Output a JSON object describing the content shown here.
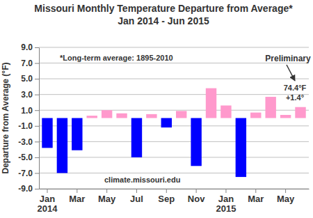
{
  "chart_data": {
    "type": "bar",
    "title": "Missouri Monthly Temperature Departure from Average*",
    "subtitle": "Jan 2014 - Jun 2015",
    "y_label": "Departure from Average (°F)",
    "annotations": [
      "*Long-term average: 1895-2010",
      "Preliminary",
      "74.4°F",
      "+1.4°",
      "climate.missouri.edu"
    ],
    "categories": [
      "Jan 2014",
      null,
      "Mar",
      null,
      "May",
      null,
      "Jul",
      null,
      "Sep",
      null,
      "Nov",
      null,
      "Jan 2015",
      null,
      "Mar",
      null,
      "May",
      null
    ],
    "values": [
      -3.8,
      -7.0,
      -4.1,
      0.3,
      1.0,
      0.6,
      -5.0,
      0.5,
      -1.2,
      0.9,
      -6.1,
      3.8,
      1.6,
      -7.5,
      0.7,
      2.7,
      0.4,
      1.4
    ],
    "colors": [
      "#0000ff",
      "#0000ff",
      "#0000ff",
      "#ff99cc",
      "#ff99cc",
      "#ff99cc",
      "#0000ff",
      "#ff99cc",
      "#0000ff",
      "#ff99cc",
      "#0000ff",
      "#ff99cc",
      "#ff99cc",
      "#0000ff",
      "#ff99cc",
      "#ff99cc",
      "#ff99cc",
      "#ff99cc"
    ],
    "ylim": [
      -9,
      9
    ],
    "yticks": [
      {
        "value": -9,
        "label": "-9.0"
      },
      {
        "value": -7,
        "label": "-7.0"
      },
      {
        "value": -5,
        "label": "-5.0"
      },
      {
        "value": -3,
        "label": "-3.0"
      },
      {
        "value": -1,
        "label": "-1.0"
      },
      {
        "value": 1,
        "label": "1.0"
      },
      {
        "value": 3,
        "label": "3.0"
      },
      {
        "value": 5,
        "label": "5.0"
      },
      {
        "value": 7,
        "label": "7.0"
      },
      {
        "value": 9,
        "label": "9.0"
      }
    ],
    "grid": true
  }
}
